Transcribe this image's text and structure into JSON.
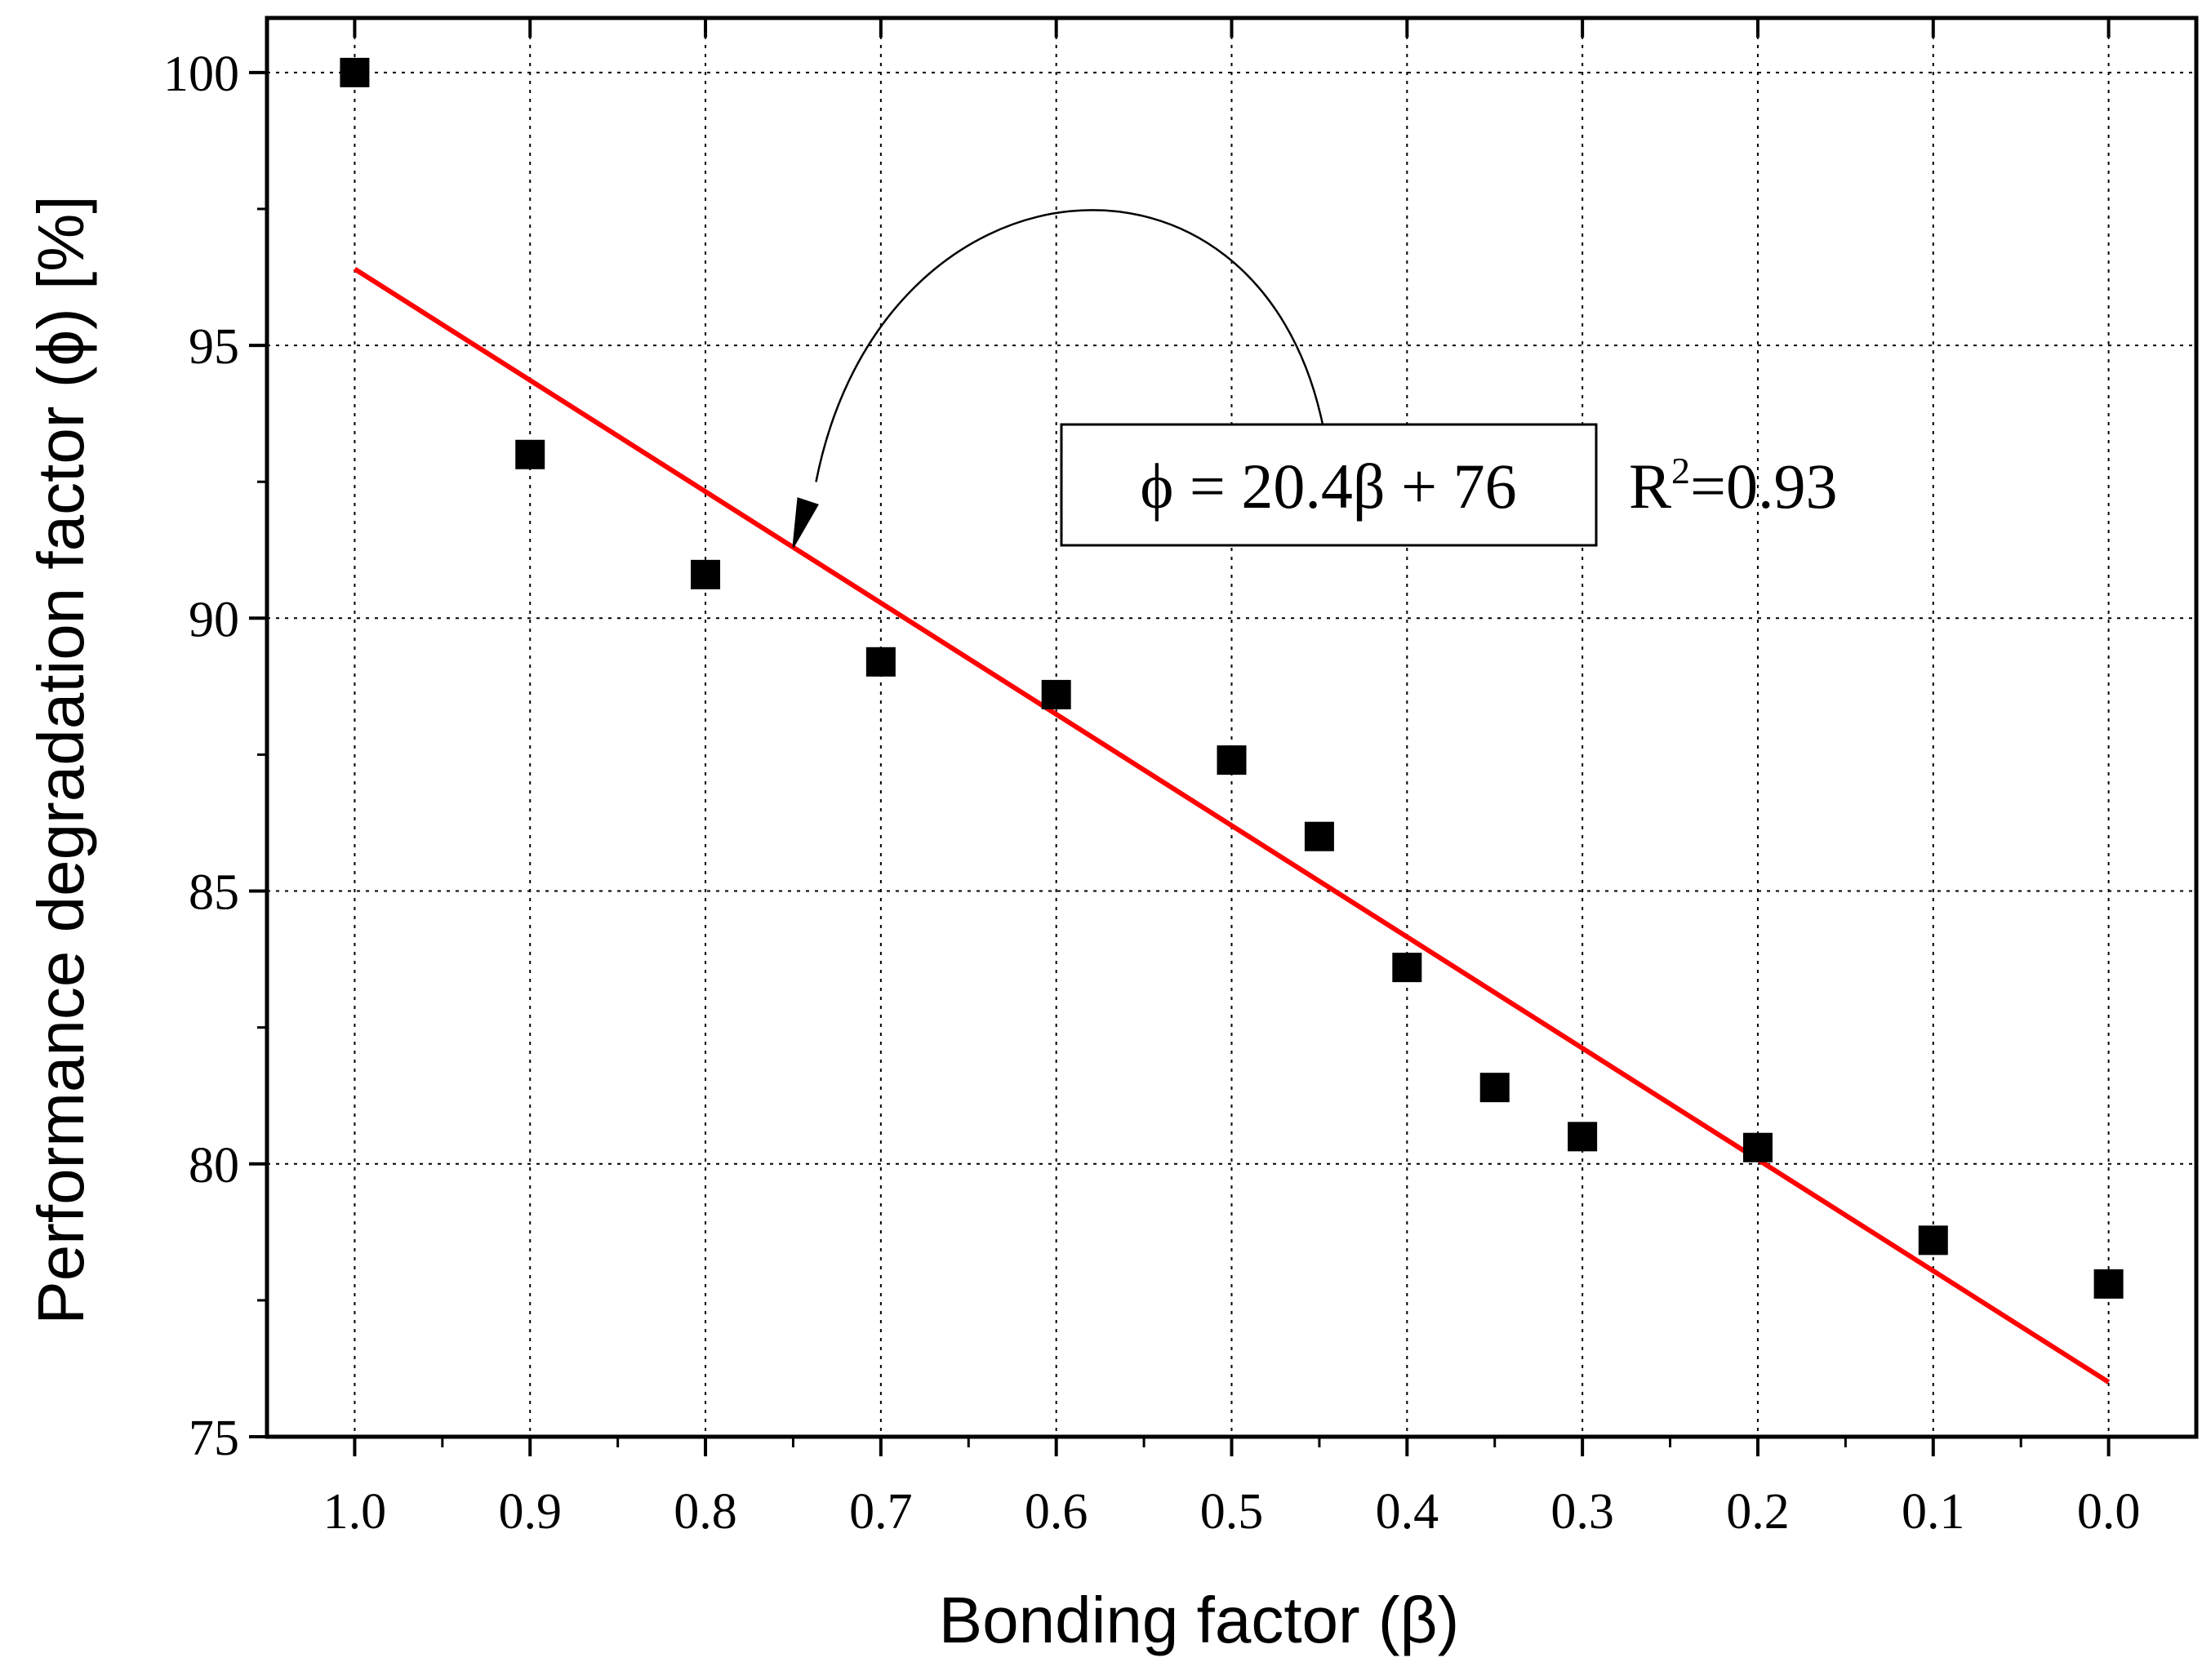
{
  "chart_data": {
    "type": "scatter",
    "title": "",
    "xlabel": "Bonding factor (β)",
    "ylabel": "Performance degradation factor (ϕ) [%]",
    "xlim": [
      1.05,
      -0.05
    ],
    "ylim": [
      75,
      101
    ],
    "x_reversed": true,
    "grid": true,
    "grid_style": "dotted",
    "x_ticks": [
      1.0,
      0.9,
      0.8,
      0.7,
      0.6,
      0.5,
      0.4,
      0.3,
      0.2,
      0.1,
      0.0
    ],
    "x_tick_labels": [
      "1.0",
      "0.9",
      "0.8",
      "0.7",
      "0.6",
      "0.5",
      "0.4",
      "0.3",
      "0.2",
      "0.1",
      "0.0"
    ],
    "x_minor_ticks": [
      0.95,
      0.85,
      0.75,
      0.65,
      0.55,
      0.45,
      0.35,
      0.25,
      0.15,
      0.05
    ],
    "y_ticks": [
      75,
      80,
      85,
      90,
      95,
      100
    ],
    "y_tick_labels": [
      "75",
      "80",
      "85",
      "90",
      "95",
      "100"
    ],
    "y_minor_ticks": [
      77.5,
      82.5,
      87.5,
      92.5,
      97.5
    ],
    "series": [
      {
        "marker": "square",
        "color": "#000000",
        "points": [
          {
            "x": 1.0,
            "y": 100.0
          },
          {
            "x": 0.9,
            "y": 93.0
          },
          {
            "x": 0.8,
            "y": 90.8
          },
          {
            "x": 0.7,
            "y": 89.2
          },
          {
            "x": 0.6,
            "y": 88.6
          },
          {
            "x": 0.5,
            "y": 87.4
          },
          {
            "x": 0.45,
            "y": 86.0
          },
          {
            "x": 0.4,
            "y": 83.6
          },
          {
            "x": 0.35,
            "y": 81.4
          },
          {
            "x": 0.3,
            "y": 80.5
          },
          {
            "x": 0.2,
            "y": 80.3
          },
          {
            "x": 0.1,
            "y": 78.6
          },
          {
            "x": 0.0,
            "y": 77.8
          }
        ]
      }
    ],
    "fit_line": {
      "color": "#ff0000",
      "slope": 20.4,
      "intercept": 76,
      "x_range": [
        0.0,
        1.0
      ]
    },
    "annotations": {
      "equation": "ϕ = 20.4β + 76",
      "r_squared": {
        "base": "R",
        "sup": "2",
        "rest": "=0.93"
      },
      "arrow_target": {
        "x": 0.75,
        "y": 91.3
      }
    }
  }
}
